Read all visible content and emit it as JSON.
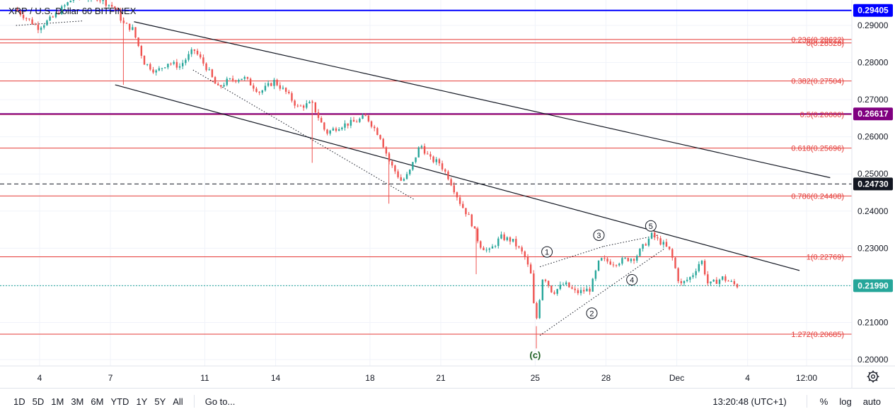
{
  "symbol_title": "XRP / U.S. Dollar  60  BITFINEX",
  "chart_data": {
    "type": "candlestick",
    "symbol": "XRP / U.S. Dollar",
    "interval": "60",
    "exchange": "BITFINEX",
    "ylim": [
      0.1975,
      0.2975
    ],
    "xlim": [
      "Nov 3 00:00",
      "Dec 7 12:00"
    ],
    "y_ticks": [
      "0.29000",
      "0.28000",
      "0.27000",
      "0.26000",
      "0.25000",
      "0.24000",
      "0.23000",
      "0.22000",
      "0.21000",
      "0.20000"
    ],
    "y_tick_values": [
      0.29,
      0.28,
      0.27,
      0.26,
      0.25,
      0.24,
      0.23,
      0.22,
      0.21,
      0.2
    ],
    "x_ticks": [
      {
        "label": "4",
        "day": 4
      },
      {
        "label": "7",
        "day": 7
      },
      {
        "label": "11",
        "day": 11
      },
      {
        "label": "14",
        "day": 14
      },
      {
        "label": "18",
        "day": 18
      },
      {
        "label": "21",
        "day": 21
      },
      {
        "label": "25",
        "day": 25
      },
      {
        "label": "28",
        "day": 28
      },
      {
        "label": "Dec",
        "day": 31
      },
      {
        "label": "4",
        "day": 34
      },
      {
        "label": "12:00",
        "day": 36.5
      }
    ],
    "price_path": [
      [
        3.0,
        0.2945
      ],
      [
        3.6,
        0.2915
      ],
      [
        4.0,
        0.2895
      ],
      [
        4.6,
        0.292
      ],
      [
        5.0,
        0.2945
      ],
      [
        5.5,
        0.2975
      ],
      [
        6.5,
        0.2975
      ],
      [
        7.3,
        0.2945
      ],
      [
        7.6,
        0.2905
      ],
      [
        8.0,
        0.289
      ],
      [
        8.5,
        0.28
      ],
      [
        9.0,
        0.2775
      ],
      [
        9.5,
        0.28
      ],
      [
        10.0,
        0.279
      ],
      [
        10.6,
        0.2835
      ],
      [
        11.2,
        0.278
      ],
      [
        11.6,
        0.273
      ],
      [
        12.0,
        0.275
      ],
      [
        12.7,
        0.276
      ],
      [
        13.4,
        0.272
      ],
      [
        14.0,
        0.275
      ],
      [
        14.5,
        0.272
      ],
      [
        15.0,
        0.268
      ],
      [
        15.6,
        0.269
      ],
      [
        16.2,
        0.261
      ],
      [
        16.8,
        0.263
      ],
      [
        17.4,
        0.264
      ],
      [
        17.9,
        0.2655
      ],
      [
        18.5,
        0.26
      ],
      [
        18.9,
        0.253
      ],
      [
        19.4,
        0.248
      ],
      [
        19.7,
        0.25
      ],
      [
        20.2,
        0.258
      ],
      [
        20.6,
        0.254
      ],
      [
        21.0,
        0.253
      ],
      [
        21.4,
        0.249
      ],
      [
        21.9,
        0.242
      ],
      [
        22.3,
        0.238
      ],
      [
        22.7,
        0.231
      ],
      [
        23.1,
        0.229
      ],
      [
        23.6,
        0.233
      ],
      [
        24.1,
        0.232
      ],
      [
        24.6,
        0.228
      ],
      [
        24.95,
        0.2215
      ],
      [
        25.05,
        0.208
      ],
      [
        25.4,
        0.223
      ],
      [
        25.8,
        0.218
      ],
      [
        26.3,
        0.2205
      ],
      [
        26.8,
        0.218
      ],
      [
        27.4,
        0.219
      ],
      [
        27.8,
        0.227
      ],
      [
        28.4,
        0.226
      ],
      [
        28.9,
        0.227
      ],
      [
        29.3,
        0.2275
      ],
      [
        29.7,
        0.231
      ],
      [
        30.0,
        0.2335
      ],
      [
        30.5,
        0.231
      ],
      [
        30.8,
        0.229
      ],
      [
        31.2,
        0.22
      ],
      [
        31.7,
        0.2225
      ],
      [
        32.1,
        0.227
      ],
      [
        32.4,
        0.22
      ],
      [
        33.0,
        0.222
      ],
      [
        33.6,
        0.2199
      ]
    ],
    "dip_spikes": [
      [
        7.55,
        0.274
      ],
      [
        15.55,
        0.253
      ],
      [
        18.8,
        0.242
      ],
      [
        22.5,
        0.223
      ],
      [
        25.05,
        0.203
      ]
    ],
    "horizontal_lines": [
      {
        "price": 0.29405,
        "label": "0.29405",
        "color": "#0000ff",
        "style": "solid",
        "boxed": true,
        "width": 2
      },
      {
        "price": 0.26617,
        "label": "0.26617",
        "color": "#800080",
        "style": "solid",
        "boxed": true,
        "width": 2
      },
      {
        "price": 0.2473,
        "label": "0.24730",
        "color": "#131722",
        "style": "dashed",
        "boxed": true,
        "width": 1
      },
      {
        "price": 0.2199,
        "label": "0.21990",
        "color": "#26a69a",
        "style": "dotted",
        "boxed": true,
        "width": 1
      }
    ],
    "fib_levels": [
      {
        "price": 0.28622,
        "label": "0.236(0.28622)"
      },
      {
        "price": 0.28528,
        "label": "0(0.28528)"
      },
      {
        "price": 0.27504,
        "label": "0.382(0.27504)"
      },
      {
        "price": 0.266,
        "label": "0.5(0.26600)"
      },
      {
        "price": 0.25696,
        "label": "0.618(0.25696)"
      },
      {
        "price": 0.24408,
        "label": "0.786(0.24408)"
      },
      {
        "price": 0.22769,
        "label": "1(0.22769)"
      },
      {
        "price": 0.20685,
        "label": "1.272(0.20685)"
      }
    ],
    "channel_lines": [
      {
        "from": [
          8.0,
          0.291
        ],
        "to": [
          37.5,
          0.249
        ]
      },
      {
        "from": [
          7.2,
          0.274
        ],
        "to": [
          36.2,
          0.224
        ]
      }
    ],
    "dotted_lines": [
      {
        "from": [
          3.0,
          0.29
        ],
        "to": [
          5.8,
          0.2912
        ]
      },
      {
        "from": [
          10.5,
          0.278
        ],
        "to": [
          19.9,
          0.243
        ]
      },
      {
        "from": [
          25.2,
          0.225
        ],
        "to": [
          27.9,
          0.2305
        ]
      },
      {
        "from": [
          27.9,
          0.2305
        ],
        "to": [
          30.2,
          0.2335
        ]
      },
      {
        "from": [
          25.2,
          0.2065
        ],
        "to": [
          30.5,
          0.23
        ]
      }
    ],
    "wave_labels": [
      {
        "label": "1",
        "day": 25.5,
        "price": 0.229
      },
      {
        "label": "2",
        "day": 27.4,
        "price": 0.2125
      },
      {
        "label": "3",
        "day": 27.7,
        "price": 0.2335
      },
      {
        "label": "4",
        "day": 29.1,
        "price": 0.2215
      },
      {
        "label": "5",
        "day": 29.9,
        "price": 0.236
      }
    ],
    "corrective_label": {
      "label": "(c)",
      "day": 25.0,
      "price": 0.2011
    }
  },
  "toolbar": {
    "ranges": [
      "1D",
      "5D",
      "1M",
      "3M",
      "6M",
      "YTD",
      "1Y",
      "5Y",
      "All"
    ],
    "goto_label": "Go to...",
    "time_label": "13:20:48 (UTC+1)",
    "percent_label": "%",
    "log_label": "log",
    "auto_label": "auto"
  },
  "colors": {
    "up": "#26a69a",
    "down": "#ef5350",
    "fib": "#e53935",
    "grid": "#f0f3fa",
    "axis_text": "#131722"
  },
  "icons": {
    "settings": "gear-icon"
  }
}
